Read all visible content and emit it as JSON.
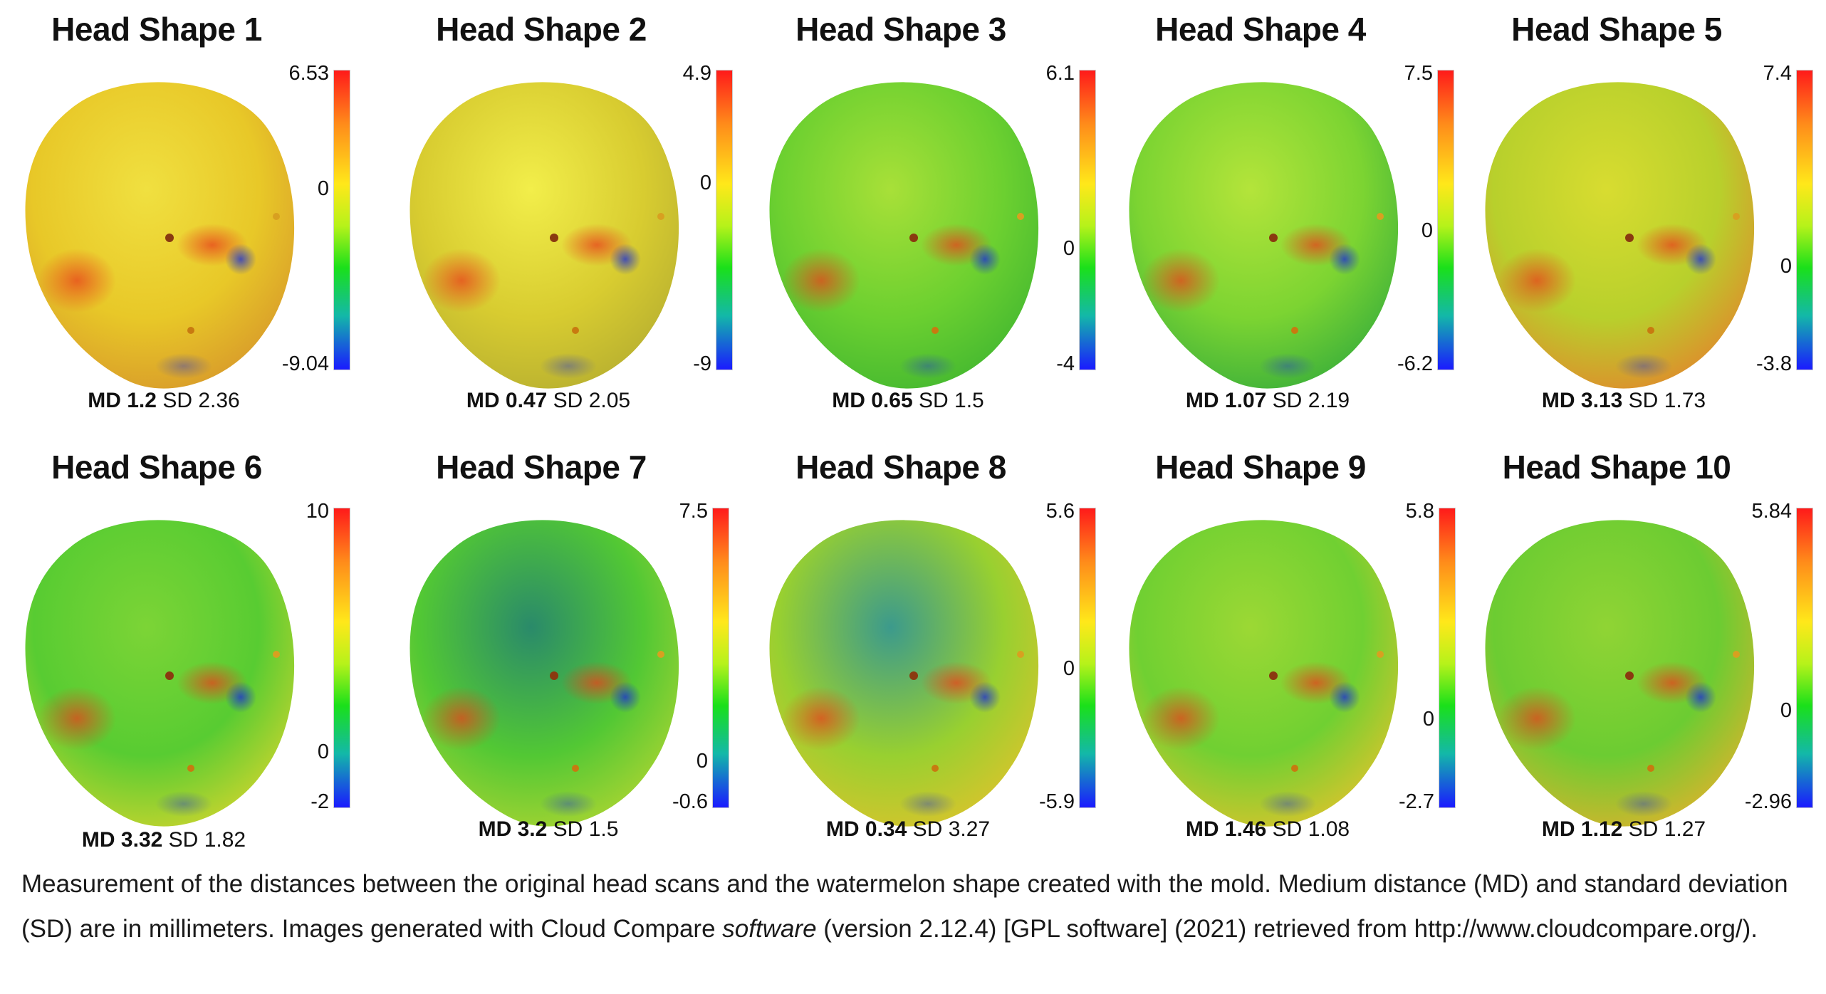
{
  "figure": {
    "panels": [
      {
        "title": "Head Shape 1",
        "md_label": "MD",
        "md": "1.2",
        "sd_label": "SD",
        "sd": "2.36",
        "scale": {
          "max": "6.53",
          "mid": "0",
          "min": "-9.04",
          "zero_frac": 0.4
        },
        "tint": {
          "base": "#e8c828",
          "top": "#f0e040",
          "side": "#d89a2a"
        }
      },
      {
        "title": "Head Shape 2",
        "md_label": "MD",
        "md": "0.47",
        "sd_label": "SD",
        "sd": "2.05",
        "scale": {
          "max": "4.9",
          "mid": "0",
          "min": "-9",
          "zero_frac": 0.38
        },
        "tint": {
          "base": "#d8cc30",
          "top": "#f2ee4a",
          "side": "#b8b030"
        }
      },
      {
        "title": "Head Shape 3",
        "md_label": "MD",
        "md": "0.65",
        "sd_label": "SD",
        "sd": "1.5",
        "scale": {
          "max": "6.1",
          "mid": "0",
          "min": "-4",
          "zero_frac": 0.6
        },
        "tint": {
          "base": "#6cd030",
          "top": "#a8e038",
          "side": "#44b830"
        }
      },
      {
        "title": "Head Shape 4",
        "md_label": "MD",
        "md": "1.07",
        "sd_label": "SD",
        "sd": "2.19",
        "scale": {
          "max": "7.5",
          "mid": "0",
          "min": "-6.2",
          "zero_frac": 0.54
        },
        "tint": {
          "base": "#7cd432",
          "top": "#b4e43a",
          "side": "#3cb03a"
        }
      },
      {
        "title": "Head Shape 5",
        "md_label": "MD",
        "md": "3.13",
        "sd_label": "SD",
        "sd": "1.73",
        "scale": {
          "max": "7.4",
          "mid": "0",
          "min": "-3.8",
          "zero_frac": 0.66
        },
        "tint": {
          "base": "#b8d02c",
          "top": "#d8dc30",
          "side": "#e08a2c"
        }
      },
      {
        "title": "Head Shape 6",
        "md_label": "MD",
        "md": "3.32",
        "sd_label": "SD",
        "sd": "1.82",
        "scale": {
          "max": "10",
          "mid": "0",
          "min": "-2",
          "zero_frac": 0.82
        },
        "tint": {
          "base": "#58cc32",
          "top": "#7cd436",
          "side": "#c8d42e"
        }
      },
      {
        "title": "Head Shape 7",
        "md_label": "MD",
        "md": "3.2",
        "sd_label": "SD",
        "sd": "1.5",
        "scale": {
          "max": "7.5",
          "mid": "0",
          "min": "-0.6",
          "zero_frac": 0.85
        },
        "tint": {
          "base": "#52c834",
          "top": "#2a8a6a",
          "side": "#a8d432"
        }
      },
      {
        "title": "Head Shape 8",
        "md_label": "MD",
        "md": "0.34",
        "sd_label": "SD",
        "sd": "3.27",
        "scale": {
          "max": "5.6",
          "mid": "0",
          "min": "-5.9",
          "zero_frac": 0.54
        },
        "tint": {
          "base": "#98d030",
          "top": "#3c9a8c",
          "side": "#d8c42c"
        }
      },
      {
        "title": "Head Shape 9",
        "md_label": "MD",
        "md": "1.46",
        "sd_label": "SD",
        "sd": "1.08",
        "scale": {
          "max": "5.8",
          "mid": "0",
          "min": "-2.7",
          "zero_frac": 0.71
        },
        "tint": {
          "base": "#70d032",
          "top": "#9cd834",
          "side": "#d8c42c"
        }
      },
      {
        "title": "Head Shape 10",
        "md_label": "MD",
        "md": "1.12",
        "sd_label": "SD",
        "sd": "1.27",
        "scale": {
          "max": "5.84",
          "mid": "0",
          "min": "-2.96",
          "zero_frac": 0.68
        },
        "tint": {
          "base": "#6ccc32",
          "top": "#90d434",
          "side": "#d8b42c"
        }
      }
    ]
  },
  "caption": {
    "part1": "Measurement of the distances between the original head scans and the watermelon shape created with the mold. Medium distance (MD) and standard deviation (SD) are in millimeters. Images generated with Cloud Compare ",
    "italic": "software",
    "part2": " (version 2.12.4) [GPL software] (2021) retrieved from http://www.cloudcompare.org/)."
  }
}
